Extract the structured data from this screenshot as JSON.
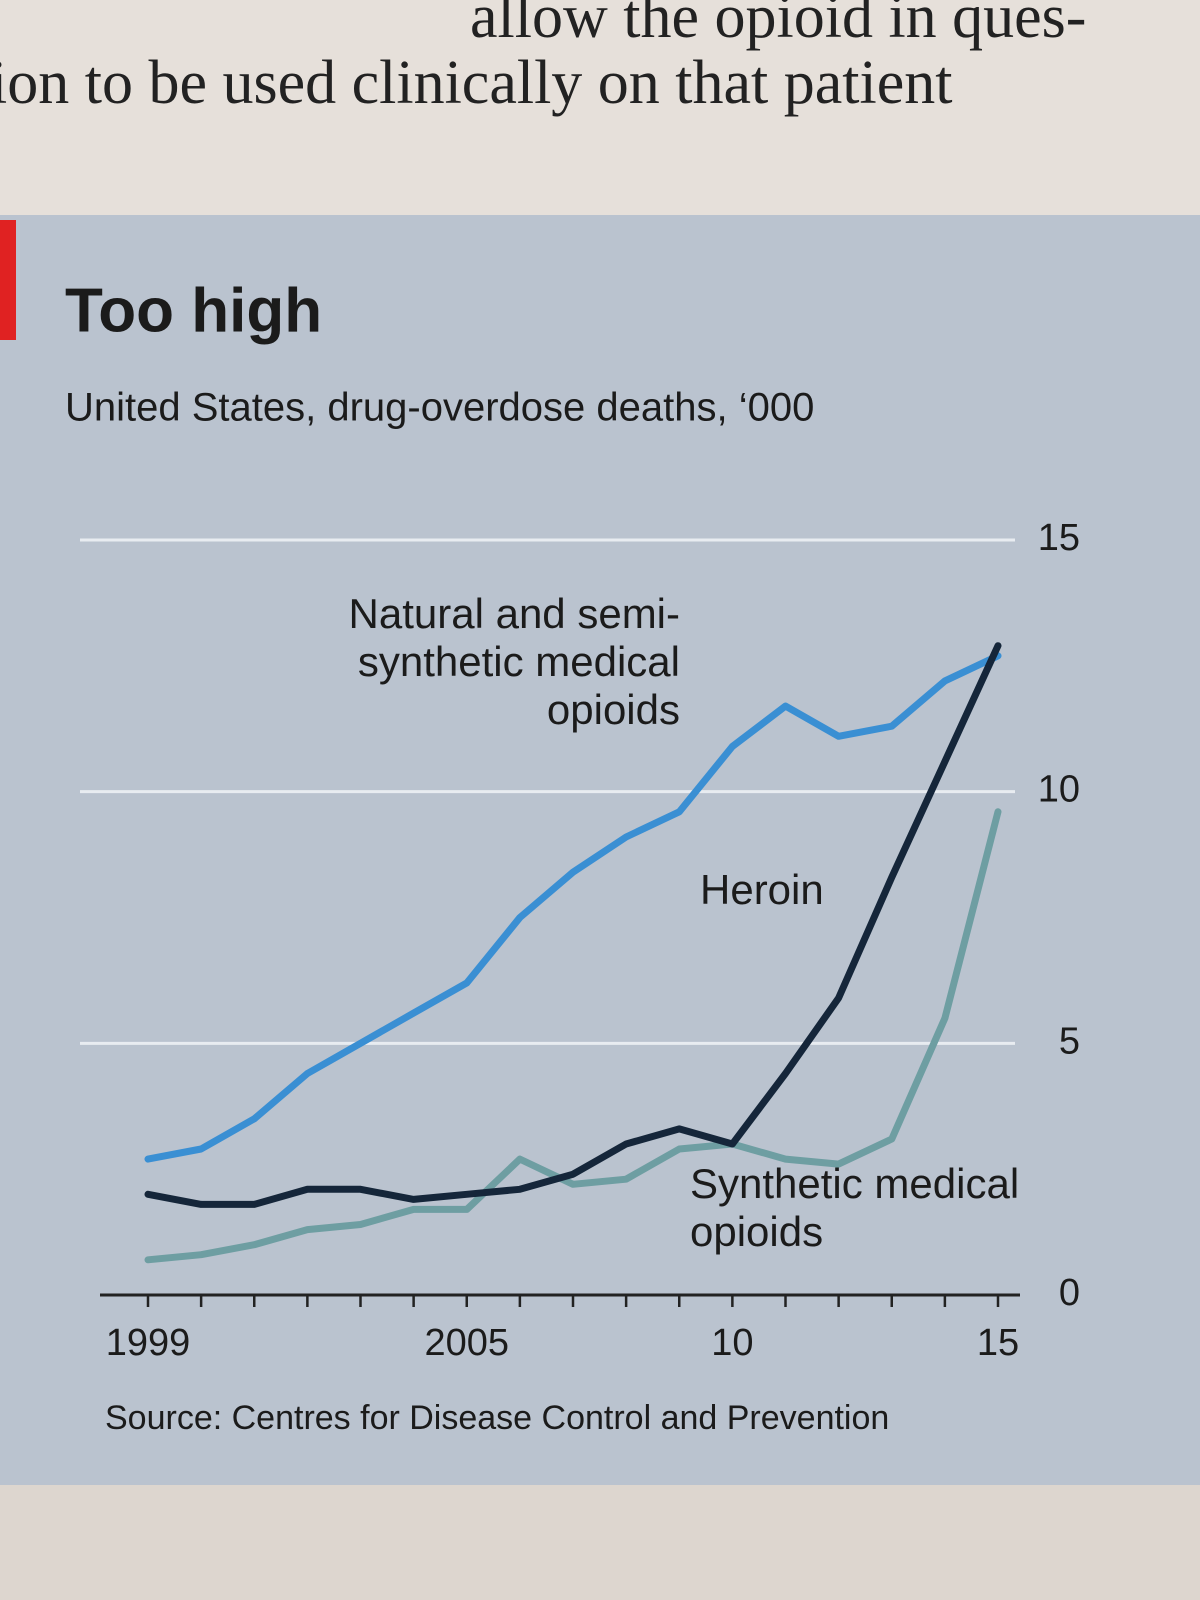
{
  "article_text": [
    "allow the opioid in ques-",
    "ion to be used clinically on that patient"
  ],
  "chart_data": {
    "type": "line",
    "title": "Too high",
    "subtitle": "United States, drug-overdose deaths, ‘000",
    "source": "Source: Centres for Disease Control and Prevention",
    "x": [
      1999,
      2000,
      2001,
      2002,
      2003,
      2004,
      2005,
      2006,
      2007,
      2008,
      2009,
      2010,
      2011,
      2012,
      2013,
      2014,
      2015
    ],
    "xlim": [
      1999,
      2015
    ],
    "xticks": [
      1999,
      2005,
      {
        "value": 2010,
        "label": "10"
      },
      {
        "value": 2015,
        "label": "15"
      }
    ],
    "ylim": [
      0,
      15
    ],
    "yticks": [
      0,
      5,
      10,
      15
    ],
    "grid": true,
    "series": [
      {
        "name": "Natural and semi-synthetic medical opioids",
        "color": "#3a8fd3",
        "values": [
          2.7,
          2.9,
          3.5,
          4.4,
          5.0,
          5.6,
          6.2,
          7.5,
          8.4,
          9.1,
          9.6,
          10.9,
          11.7,
          11.1,
          11.3,
          12.2,
          12.7
        ]
      },
      {
        "name": "Heroin",
        "color": "#15263a",
        "values": [
          2.0,
          1.8,
          1.8,
          2.1,
          2.1,
          1.9,
          2.0,
          2.1,
          2.4,
          3.0,
          3.3,
          3.0,
          4.4,
          5.9,
          8.3,
          10.6,
          12.9
        ]
      },
      {
        "name": "Synthetic medical opioids",
        "color": "#6e9ea2",
        "values": [
          0.7,
          0.8,
          1.0,
          1.3,
          1.4,
          1.7,
          1.7,
          2.7,
          2.2,
          2.3,
          2.9,
          3.0,
          2.7,
          2.6,
          3.1,
          5.5,
          9.6
        ]
      }
    ]
  }
}
